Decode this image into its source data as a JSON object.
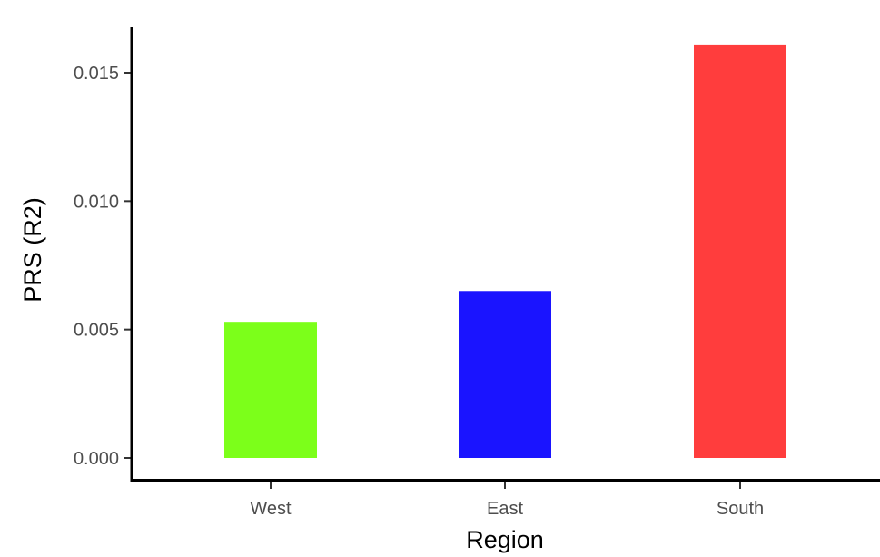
{
  "chart_data": {
    "type": "bar",
    "title": "",
    "xlabel": "Region",
    "ylabel": "PRS (R2)",
    "categories": [
      "West",
      "East",
      "South"
    ],
    "values": [
      0.0053,
      0.0065,
      0.0161
    ],
    "colors": [
      "#7cff1a",
      "#1a14ff",
      "#ff3d3d"
    ],
    "ylim": [
      0.0,
      0.0166
    ],
    "yticks": [
      0.0,
      0.005,
      0.01,
      0.015
    ],
    "ytick_labels": [
      "0.000",
      "0.005",
      "0.010",
      "0.015"
    ],
    "grid": false,
    "legend": "none"
  }
}
